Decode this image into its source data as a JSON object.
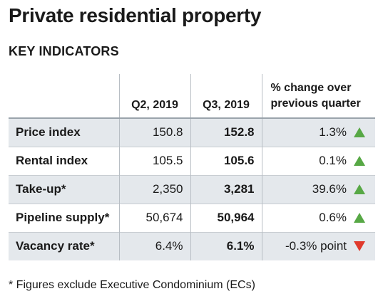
{
  "title": "Private residential property",
  "subtitle": "KEY INDICATORS",
  "table": {
    "headers": {
      "label": "",
      "q2": "Q2, 2019",
      "q3": "Q3, 2019",
      "change_line1": "% change over",
      "change_line2": "previous quarter"
    },
    "rows": [
      {
        "label": "Price index",
        "q2": "150.8",
        "q3": "152.8",
        "change": "1.3%",
        "direction": "up"
      },
      {
        "label": "Rental index",
        "q2": "105.5",
        "q3": "105.6",
        "change": "0.1%",
        "direction": "up"
      },
      {
        "label": "Take-up*",
        "q2": "2,350",
        "q3": "3,281",
        "change": "39.6%",
        "direction": "up"
      },
      {
        "label": "Pipeline supply*",
        "q2": "50,674",
        "q3": "50,964",
        "change": "0.6%",
        "direction": "up"
      },
      {
        "label": "Vacancy rate*",
        "q2": "6.4%",
        "q3": "6.1%",
        "change": "-0.3% point",
        "direction": "down"
      }
    ]
  },
  "colors": {
    "up": "#57a845",
    "down": "#e03a2c",
    "row_shade": "#e4e8ec"
  },
  "icons": {
    "up": "triangle-up-icon",
    "down": "triangle-down-icon"
  },
  "footnote": "* Figures exclude Executive Condominium (ECs)"
}
